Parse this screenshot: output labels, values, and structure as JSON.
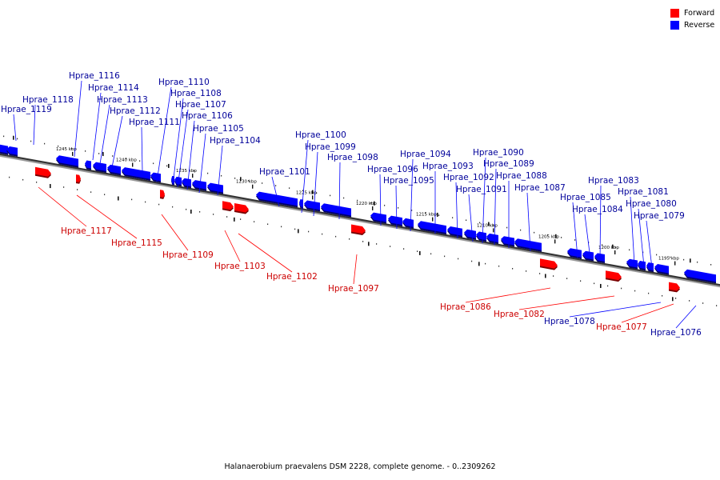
{
  "caption": "Halanaerobium praevalens DSM 2228, complete genome. - 0..2309262",
  "colors": {
    "forward": "#ff0000",
    "reverse": "#0000ff",
    "forward_label": "#cc0000",
    "reverse_label": "#00009a"
  },
  "legend": [
    {
      "label": "Forward",
      "strand": "forward"
    },
    {
      "label": "Reverse",
      "strand": "reverse"
    }
  ],
  "ticks": [
    "1245 kbp",
    "1240 kbp",
    "1235 kbp",
    "1230 kbp",
    "1225 kbp",
    "1220 kbp",
    "1215 kbp",
    "1210 kbp",
    "1205 kbp",
    "1200 kbp",
    "1195 kbp"
  ],
  "genes": [
    {
      "name": "Hprae_1119",
      "strand": "reverse"
    },
    {
      "name": "Hprae_1118",
      "strand": "reverse"
    },
    {
      "name": "Hprae_1117",
      "strand": "forward"
    },
    {
      "name": "Hprae_1116",
      "strand": "reverse"
    },
    {
      "name": "Hprae_1115",
      "strand": "forward"
    },
    {
      "name": "Hprae_1114",
      "strand": "reverse"
    },
    {
      "name": "Hprae_1113",
      "strand": "reverse"
    },
    {
      "name": "Hprae_1112",
      "strand": "reverse"
    },
    {
      "name": "Hprae_1111",
      "strand": "reverse"
    },
    {
      "name": "Hprae_1110",
      "strand": "reverse"
    },
    {
      "name": "Hprae_1109",
      "strand": "forward"
    },
    {
      "name": "Hprae_1108",
      "strand": "reverse"
    },
    {
      "name": "Hprae_1107",
      "strand": "reverse"
    },
    {
      "name": "Hprae_1106",
      "strand": "reverse"
    },
    {
      "name": "Hprae_1105",
      "strand": "reverse"
    },
    {
      "name": "Hprae_1104",
      "strand": "reverse"
    },
    {
      "name": "Hprae_1103",
      "strand": "forward"
    },
    {
      "name": "Hprae_1102",
      "strand": "forward"
    },
    {
      "name": "Hprae_1101",
      "strand": "reverse"
    },
    {
      "name": "Hprae_1100",
      "strand": "reverse"
    },
    {
      "name": "Hprae_1099",
      "strand": "reverse"
    },
    {
      "name": "Hprae_1098",
      "strand": "reverse"
    },
    {
      "name": "Hprae_1097",
      "strand": "forward"
    },
    {
      "name": "Hprae_1096",
      "strand": "reverse"
    },
    {
      "name": "Hprae_1095",
      "strand": "reverse"
    },
    {
      "name": "Hprae_1094",
      "strand": "reverse"
    },
    {
      "name": "Hprae_1093",
      "strand": "reverse"
    },
    {
      "name": "Hprae_1092",
      "strand": "reverse"
    },
    {
      "name": "Hprae_1091",
      "strand": "reverse"
    },
    {
      "name": "Hprae_1090",
      "strand": "reverse"
    },
    {
      "name": "Hprae_1089",
      "strand": "reverse"
    },
    {
      "name": "Hprae_1088",
      "strand": "reverse"
    },
    {
      "name": "Hprae_1087",
      "strand": "reverse"
    },
    {
      "name": "Hprae_1086",
      "strand": "forward"
    },
    {
      "name": "Hprae_1085",
      "strand": "reverse"
    },
    {
      "name": "Hprae_1084",
      "strand": "reverse"
    },
    {
      "name": "Hprae_1083",
      "strand": "reverse"
    },
    {
      "name": "Hprae_1082",
      "strand": "forward"
    },
    {
      "name": "Hprae_1081",
      "strand": "reverse"
    },
    {
      "name": "Hprae_1080",
      "strand": "reverse"
    },
    {
      "name": "Hprae_1079",
      "strand": "reverse"
    },
    {
      "name": "Hprae_1078",
      "strand": "reverse"
    },
    {
      "name": "Hprae_1077",
      "strand": "forward"
    },
    {
      "name": "Hprae_1076",
      "strand": "reverse"
    }
  ]
}
